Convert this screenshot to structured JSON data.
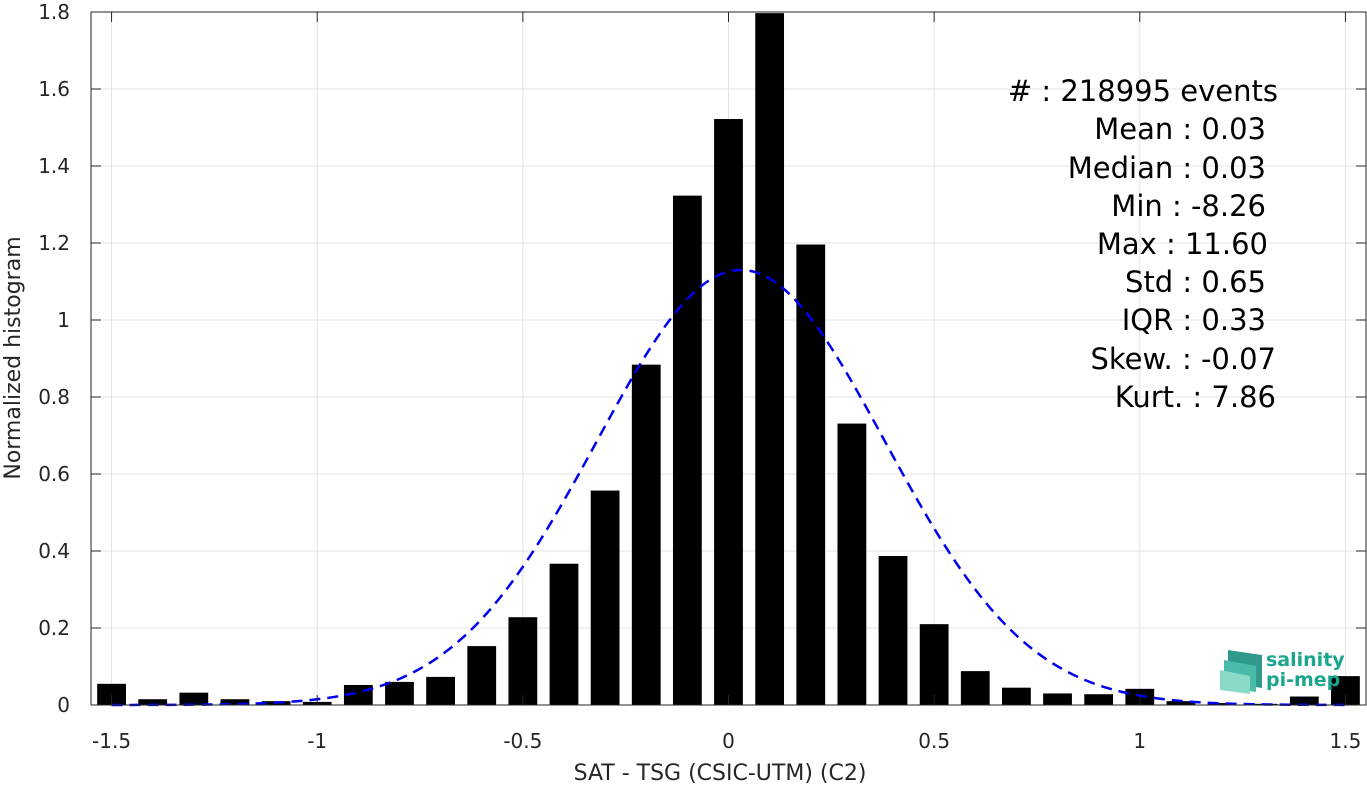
{
  "chart_data": {
    "type": "bar",
    "xlabel": "SAT - TSG (CSIC-UTM) (C2)",
    "ylabel": "Normalized histogram",
    "xlim": [
      -1.55,
      1.55
    ],
    "ylim": [
      0,
      1.8
    ],
    "xticks": [
      -1.5,
      -1,
      -0.5,
      0,
      0.5,
      1,
      1.5
    ],
    "xtick_labels": [
      "-1.5",
      "-1",
      "-0.5",
      "0",
      "0.5",
      "1",
      "1.5"
    ],
    "yticks": [
      0,
      0.2,
      0.4,
      0.6,
      0.8,
      1,
      1.2,
      1.4,
      1.6,
      1.8
    ],
    "ytick_labels": [
      "0",
      "0.2",
      "0.4",
      "0.6",
      "0.8",
      "1",
      "1.2",
      "1.4",
      "1.6",
      "1.8"
    ],
    "grid": true,
    "bar_color": "#000000",
    "bar_width": 0.07,
    "bars": {
      "x": [
        -1.5,
        -1.4,
        -1.3,
        -1.2,
        -1.1,
        -1.0,
        -0.9,
        -0.8,
        -0.7,
        -0.6,
        -0.5,
        -0.4,
        -0.3,
        -0.2,
        -0.1,
        0.0,
        0.1,
        0.2,
        0.3,
        0.4,
        0.5,
        0.6,
        0.7,
        0.8,
        0.9,
        1.0,
        1.1,
        1.2,
        1.3,
        1.4,
        1.5
      ],
      "values": [
        0.055,
        0.015,
        0.032,
        0.015,
        0.01,
        0.008,
        0.052,
        0.06,
        0.073,
        0.153,
        0.228,
        0.367,
        0.557,
        0.884,
        1.323,
        1.522,
        1.797,
        1.196,
        0.731,
        0.387,
        0.21,
        0.088,
        0.045,
        0.03,
        0.028,
        0.042,
        0.01,
        0.005,
        0.003,
        0.022,
        0.075
      ]
    },
    "fit": {
      "style": "dashed",
      "color": "#0000ee",
      "mean": 0.03,
      "std": 0.35,
      "peak": 1.13,
      "x_range": [
        -1.5,
        1.5
      ]
    }
  },
  "stats": {
    "count": "#  : 218995 events",
    "mean": "Mean : 0.03",
    "median": "Median : 0.03",
    "min": "Min : -8.26",
    "max": "Max : 11.60",
    "std": "Std : 0.65",
    "iqr": "IQR : 0.33",
    "skew": "Skew. : -0.07",
    "kurt": "Kurt. : 7.86"
  },
  "logo": {
    "line1": "salinity",
    "line2": "pi-mep",
    "color": "#1aa58f"
  }
}
